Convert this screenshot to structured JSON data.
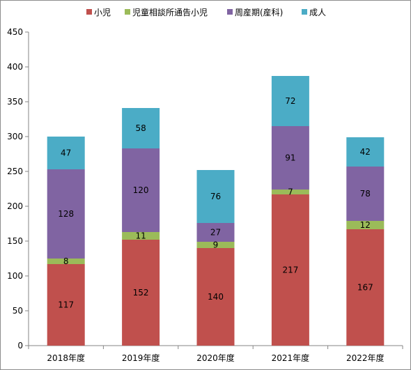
{
  "chart_data": {
    "type": "bar",
    "stacked": true,
    "title": "",
    "xlabel": "",
    "ylabel": "",
    "categories": [
      "2018年度",
      "2019年度",
      "2020年度",
      "2021年度",
      "2022年度"
    ],
    "series": [
      {
        "name": "小児",
        "color": "#c0504d",
        "values": [
          117,
          152,
          140,
          217,
          167
        ]
      },
      {
        "name": "児童相談所通告小児",
        "color": "#9bbb59",
        "values": [
          8,
          11,
          9,
          7,
          12
        ]
      },
      {
        "name": "周産期(産科)",
        "color": "#8064a2",
        "values": [
          128,
          120,
          27,
          91,
          78
        ]
      },
      {
        "name": "成人",
        "color": "#4bacc6",
        "values": [
          47,
          58,
          76,
          72,
          42
        ]
      }
    ],
    "ylim": [
      0,
      450
    ],
    "yticks": [
      0,
      50,
      100,
      150,
      200,
      250,
      300,
      350,
      400,
      450
    ],
    "grid": false,
    "legend_position": "top",
    "data_labels": true
  }
}
